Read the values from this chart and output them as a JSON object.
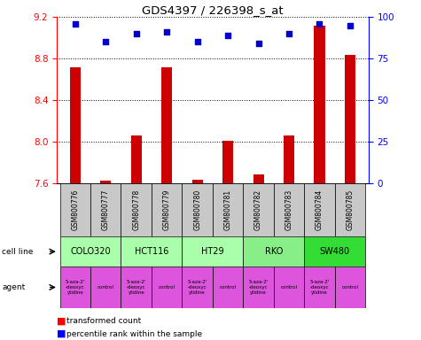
{
  "title": "GDS4397 / 226398_s_at",
  "samples": [
    "GSM800776",
    "GSM800777",
    "GSM800778",
    "GSM800779",
    "GSM800780",
    "GSM800781",
    "GSM800782",
    "GSM800783",
    "GSM800784",
    "GSM800785"
  ],
  "transformed_counts": [
    8.72,
    7.63,
    8.06,
    8.72,
    7.64,
    8.01,
    7.69,
    8.06,
    9.12,
    8.84
  ],
  "percentile_ranks": [
    96,
    85,
    90,
    91,
    85,
    89,
    84,
    90,
    96,
    95
  ],
  "ylim_left": [
    7.6,
    9.2
  ],
  "ylim_right": [
    0,
    100
  ],
  "yticks_left": [
    7.6,
    8.0,
    8.4,
    8.8,
    9.2
  ],
  "yticks_right": [
    0,
    25,
    50,
    75,
    100
  ],
  "bar_color": "#cc0000",
  "dot_color": "#0000cc",
  "cell_lines": [
    {
      "name": "COLO320",
      "start": 0,
      "end": 2,
      "color": "#aaffaa"
    },
    {
      "name": "HCT116",
      "start": 2,
      "end": 4,
      "color": "#aaffaa"
    },
    {
      "name": "HT29",
      "start": 4,
      "end": 6,
      "color": "#aaffaa"
    },
    {
      "name": "RKO",
      "start": 6,
      "end": 8,
      "color": "#88ee88"
    },
    {
      "name": "SW480",
      "start": 8,
      "end": 10,
      "color": "#33dd33"
    }
  ],
  "agents": [
    {
      "name": "5-aza-2'\n-deoxyc\nytidine",
      "start": 0,
      "end": 1,
      "color": "#dd55dd"
    },
    {
      "name": "control",
      "start": 1,
      "end": 2,
      "color": "#dd55dd"
    },
    {
      "name": "5-aza-2'\n-deoxyc\nytidine",
      "start": 2,
      "end": 3,
      "color": "#dd55dd"
    },
    {
      "name": "control",
      "start": 3,
      "end": 4,
      "color": "#dd55dd"
    },
    {
      "name": "5-aza-2'\n-deoxyc\nytidine",
      "start": 4,
      "end": 5,
      "color": "#dd55dd"
    },
    {
      "name": "control",
      "start": 5,
      "end": 6,
      "color": "#dd55dd"
    },
    {
      "name": "5-aza-2'\n-deoxyc\nytidine",
      "start": 6,
      "end": 7,
      "color": "#dd55dd"
    },
    {
      "name": "control",
      "start": 7,
      "end": 8,
      "color": "#dd55dd"
    },
    {
      "name": "5-aza-2'\n-deoxyc\nytidine",
      "start": 8,
      "end": 9,
      "color": "#dd55dd"
    },
    {
      "name": "control",
      "start": 9,
      "end": 10,
      "color": "#dd55dd"
    }
  ],
  "bg_color": "#ffffff",
  "sample_bg_color": "#c8c8c8"
}
